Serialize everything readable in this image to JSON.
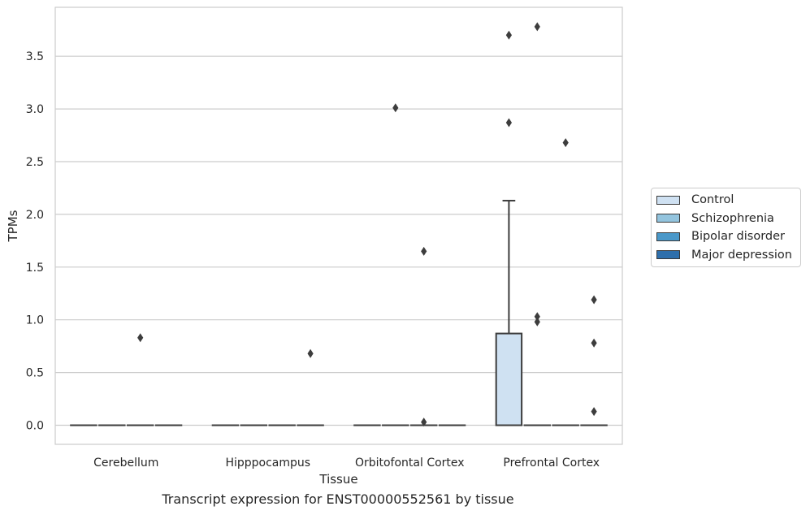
{
  "caption": "Transcript expression for ENST00000552561 by tissue",
  "chart_data": {
    "type": "box",
    "xlabel": "Tissue",
    "ylabel": "TPMs",
    "ylim": [
      -0.18,
      3.95
    ],
    "yticks": [
      0.0,
      0.5,
      1.0,
      1.5,
      2.0,
      2.5,
      3.0,
      3.5
    ],
    "ytick_labels": [
      "0.0",
      "0.5",
      "1.0",
      "1.5",
      "2.0",
      "2.5",
      "3.0",
      "3.5"
    ],
    "grid": "horizontal",
    "legend_position": "right",
    "categories": [
      "Cerebellum",
      "Hipppocampus",
      "Orbitofontal Cortex",
      "Prefrontal Cortex"
    ],
    "series": [
      {
        "name": "Control",
        "color": "#cfe1f2",
        "boxes": [
          {
            "category": "Cerebellum",
            "whisker_low": 0,
            "q1": 0,
            "median": 0,
            "q3": 0,
            "whisker_high": 0,
            "outliers": []
          },
          {
            "category": "Hipppocampus",
            "whisker_low": 0,
            "q1": 0,
            "median": 0,
            "q3": 0,
            "whisker_high": 0,
            "outliers": []
          },
          {
            "category": "Orbitofontal Cortex",
            "whisker_low": 0,
            "q1": 0,
            "median": 0,
            "q3": 0,
            "whisker_high": 0,
            "outliers": []
          },
          {
            "category": "Prefrontal Cortex",
            "whisker_low": 0,
            "q1": 0,
            "median": 0,
            "q3": 0.87,
            "whisker_high": 2.13,
            "outliers": [
              2.87,
              3.7
            ]
          }
        ]
      },
      {
        "name": "Schizophrenia",
        "color": "#93c4de",
        "boxes": [
          {
            "category": "Cerebellum",
            "whisker_low": 0,
            "q1": 0,
            "median": 0,
            "q3": 0,
            "whisker_high": 0,
            "outliers": []
          },
          {
            "category": "Hipppocampus",
            "whisker_low": 0,
            "q1": 0,
            "median": 0,
            "q3": 0,
            "whisker_high": 0,
            "outliers": []
          },
          {
            "category": "Orbitofontal Cortex",
            "whisker_low": 0,
            "q1": 0,
            "median": 0,
            "q3": 0,
            "whisker_high": 0,
            "outliers": [
              3.01
            ]
          },
          {
            "category": "Prefrontal Cortex",
            "whisker_low": 0,
            "q1": 0,
            "median": 0,
            "q3": 0,
            "whisker_high": 0,
            "outliers": [
              3.78,
              1.03,
              0.98
            ]
          }
        ]
      },
      {
        "name": "Bipolar disorder",
        "color": "#4a98c9",
        "boxes": [
          {
            "category": "Cerebellum",
            "whisker_low": 0,
            "q1": 0,
            "median": 0,
            "q3": 0,
            "whisker_high": 0,
            "outliers": [
              0.83
            ]
          },
          {
            "category": "Hipppocampus",
            "whisker_low": 0,
            "q1": 0,
            "median": 0,
            "q3": 0,
            "whisker_high": 0,
            "outliers": []
          },
          {
            "category": "Orbitofontal Cortex",
            "whisker_low": 0,
            "q1": 0,
            "median": 0,
            "q3": 0,
            "whisker_high": 0,
            "outliers": [
              1.65,
              0.03
            ]
          },
          {
            "category": "Prefrontal Cortex",
            "whisker_low": 0,
            "q1": 0,
            "median": 0,
            "q3": 0,
            "whisker_high": 0,
            "outliers": [
              2.68
            ]
          }
        ]
      },
      {
        "name": "Major depression",
        "color": "#2e6fac",
        "boxes": [
          {
            "category": "Cerebellum",
            "whisker_low": 0,
            "q1": 0,
            "median": 0,
            "q3": 0,
            "whisker_high": 0,
            "outliers": []
          },
          {
            "category": "Hipppocampus",
            "whisker_low": 0,
            "q1": 0,
            "median": 0,
            "q3": 0,
            "whisker_high": 0,
            "outliers": [
              0.68
            ]
          },
          {
            "category": "Orbitofontal Cortex",
            "whisker_low": 0,
            "q1": 0,
            "median": 0,
            "q3": 0,
            "whisker_high": 0,
            "outliers": []
          },
          {
            "category": "Prefrontal Cortex",
            "whisker_low": 0,
            "q1": 0,
            "median": 0,
            "q3": 0,
            "whisker_high": 0,
            "outliers": [
              1.19,
              0.78,
              0.13
            ]
          }
        ]
      }
    ]
  }
}
